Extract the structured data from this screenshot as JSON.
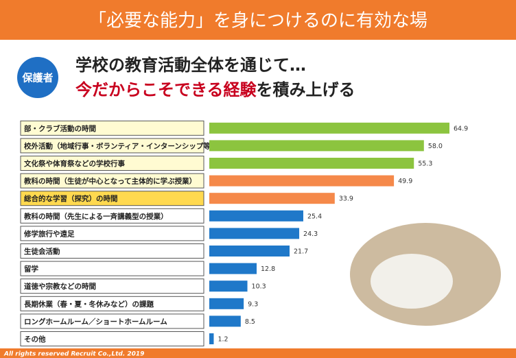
{
  "header": {
    "title": "「必要な能力」を身につけるのに有効な場"
  },
  "badge": "保護者",
  "headline": {
    "line1": "学校の教育活動全体を通じて…",
    "line2_highlight": "今だからこそできる経験",
    "line2_rest": "を積み上げる"
  },
  "chart_data": {
    "type": "bar",
    "categories": [
      "部・クラブ活動の時間",
      "校外活動（地域行事・ボランティア・インターンシップ等）",
      "文化祭や体育祭などの学校行事",
      "教科の時間（生徒が中心となって主体的に学ぶ授業）",
      "総合的な学習（探究）の時間",
      "教科の時間（先生による一斉講義型の授業）",
      "修学旅行や遠足",
      "生徒会活動",
      "留学",
      "道徳や宗教などの時間",
      "長期休業（春・夏・冬休みなど）の課題",
      "ロングホームルーム／ショートホームルーム",
      "その他"
    ],
    "values": [
      64.9,
      58.0,
      55.3,
      49.9,
      33.9,
      25.4,
      24.3,
      21.7,
      12.8,
      10.3,
      9.3,
      8.5,
      1.2
    ],
    "value_labels": [
      "64.9",
      "58.0",
      "55.3",
      "49.9",
      "33.9",
      "25.4",
      "24.3",
      "21.7",
      "12.8",
      "10.3",
      "9.3",
      "8.5",
      "1.2"
    ],
    "colors": [
      "#8cc43f",
      "#8cc43f",
      "#8cc43f",
      "#f5894a",
      "#f5894a",
      "#1f78c9",
      "#1f78c9",
      "#1f78c9",
      "#1f78c9",
      "#1f78c9",
      "#1f78c9",
      "#1f78c9",
      "#1f78c9"
    ],
    "label_colors": [
      "#fffbd2",
      "#fffbd2",
      "#fffbd2",
      "#fffbd2",
      "#ffd94f",
      "#ffffff",
      "#ffffff",
      "#ffffff",
      "#ffffff",
      "#ffffff",
      "#ffffff",
      "#ffffff",
      "#ffffff"
    ]
  },
  "footer": "All rights reserved Recruit Co.,Ltd. 2019"
}
